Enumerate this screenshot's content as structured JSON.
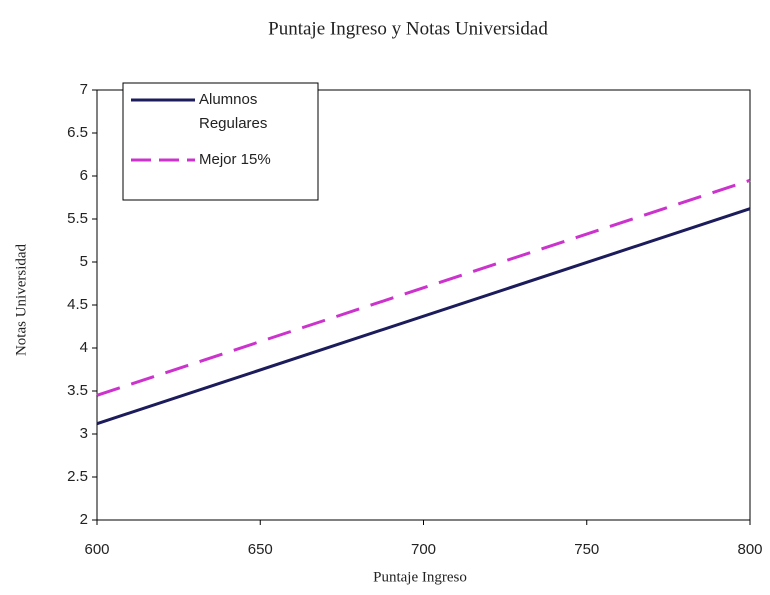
{
  "chart_data": {
    "type": "line",
    "title": "Puntaje Ingreso y Notas Universidad",
    "xlabel": "Puntaje Ingreso",
    "ylabel": "Notas Universidad",
    "x": [
      600,
      800
    ],
    "series": [
      {
        "name": "Alumnos Regulares",
        "color": "#1c1c5c",
        "dash": false,
        "values": [
          3.12,
          5.62
        ]
      },
      {
        "name": "Mejor 15%",
        "color": "#cc33cc",
        "dash": true,
        "values": [
          3.45,
          5.95
        ]
      }
    ],
    "xlim": [
      600,
      800
    ],
    "xticks": [
      600,
      650,
      700,
      750,
      800
    ],
    "ylim": [
      2,
      7
    ],
    "yticks": [
      2,
      2.5,
      3,
      3.5,
      4,
      4.5,
      5,
      5.5,
      6,
      6.5,
      7
    ],
    "grid": false,
    "legend": "top-left"
  }
}
